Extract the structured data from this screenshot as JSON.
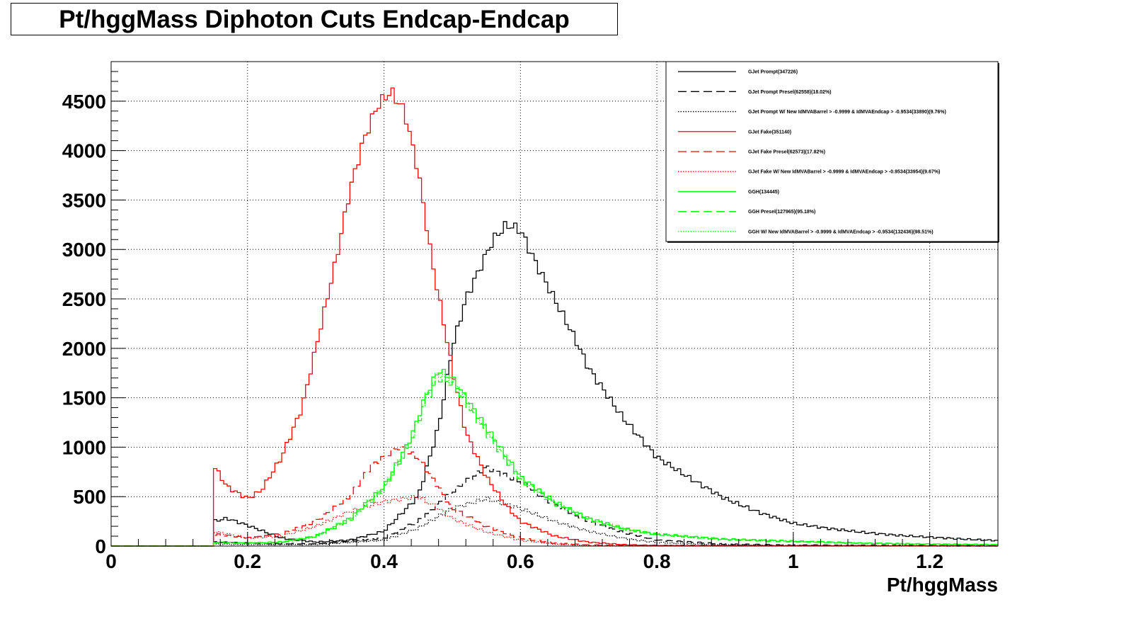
{
  "title": "Pt/hggMass Diphoton Cuts Endcap-Endcap",
  "colors": {
    "black": "#000000",
    "red": "#ff0000",
    "green": "#00ff00"
  },
  "chart_data": {
    "type": "line",
    "xlabel": "Pt/hggMass",
    "ylabel": "",
    "xlim": [
      0,
      1.3
    ],
    "ylim": [
      0,
      4900
    ],
    "grid": true,
    "legend_position": "top-right",
    "x_ticks": [
      0,
      0.2,
      0.4,
      0.6,
      0.8,
      1,
      1.2
    ],
    "x_tick_labels": [
      "0",
      "0.2",
      "0.4",
      "0.6",
      "0.8",
      "1",
      "1.2"
    ],
    "y_ticks": [
      0,
      500,
      1000,
      1500,
      2000,
      2500,
      3000,
      3500,
      4000,
      4500
    ],
    "y_tick_labels": [
      "0",
      "500",
      "1000",
      "1500",
      "2000",
      "2500",
      "3000",
      "3500",
      "4000",
      "4500"
    ],
    "series": [
      {
        "name": "GJet Prompt(347226)",
        "color": "#000000",
        "style": "solid",
        "points": [
          [
            0.15,
            0
          ],
          [
            0.15,
            250
          ],
          [
            0.17,
            280
          ],
          [
            0.2,
            210
          ],
          [
            0.25,
            80
          ],
          [
            0.3,
            40
          ],
          [
            0.35,
            60
          ],
          [
            0.4,
            150
          ],
          [
            0.45,
            500
          ],
          [
            0.48,
            1200
          ],
          [
            0.5,
            2000
          ],
          [
            0.52,
            2500
          ],
          [
            0.54,
            2800
          ],
          [
            0.56,
            3100
          ],
          [
            0.58,
            3250
          ],
          [
            0.6,
            3200
          ],
          [
            0.62,
            2900
          ],
          [
            0.65,
            2500
          ],
          [
            0.68,
            2100
          ],
          [
            0.7,
            1800
          ],
          [
            0.75,
            1300
          ],
          [
            0.8,
            900
          ],
          [
            0.85,
            680
          ],
          [
            0.9,
            480
          ],
          [
            0.95,
            340
          ],
          [
            1.0,
            230
          ],
          [
            1.05,
            180
          ],
          [
            1.1,
            140
          ],
          [
            1.15,
            110
          ],
          [
            1.2,
            90
          ],
          [
            1.25,
            70
          ],
          [
            1.3,
            55
          ]
        ]
      },
      {
        "name": "GJet Prompt Presel(62558)(18.02%)",
        "color": "#000000",
        "style": "dashed",
        "points": [
          [
            0.15,
            0
          ],
          [
            0.15,
            40
          ],
          [
            0.2,
            30
          ],
          [
            0.3,
            20
          ],
          [
            0.4,
            80
          ],
          [
            0.45,
            250
          ],
          [
            0.5,
            550
          ],
          [
            0.55,
            800
          ],
          [
            0.6,
            650
          ],
          [
            0.65,
            420
          ],
          [
            0.7,
            250
          ],
          [
            0.75,
            140
          ],
          [
            0.8,
            60
          ],
          [
            0.9,
            20
          ],
          [
            1.0,
            10
          ],
          [
            1.3,
            5
          ]
        ]
      },
      {
        "name": "GJet Prompt W/ New IdMVABarrel > -0.9999 & IdMVAEndcap > -0.9534(33890)(9.76%)",
        "color": "#000000",
        "style": "dotted",
        "points": [
          [
            0.15,
            0
          ],
          [
            0.15,
            20
          ],
          [
            0.2,
            15
          ],
          [
            0.3,
            15
          ],
          [
            0.4,
            60
          ],
          [
            0.45,
            180
          ],
          [
            0.5,
            380
          ],
          [
            0.55,
            480
          ],
          [
            0.6,
            380
          ],
          [
            0.65,
            250
          ],
          [
            0.7,
            150
          ],
          [
            0.75,
            80
          ],
          [
            0.8,
            35
          ],
          [
            0.9,
            12
          ],
          [
            1.0,
            5
          ],
          [
            1.3,
            3
          ]
        ]
      },
      {
        "name": "GJet Fake(351140)",
        "color": "#ff0000",
        "style": "solid",
        "points": [
          [
            0.15,
            0
          ],
          [
            0.15,
            820
          ],
          [
            0.17,
            600
          ],
          [
            0.2,
            480
          ],
          [
            0.22,
            560
          ],
          [
            0.25,
            900
          ],
          [
            0.28,
            1400
          ],
          [
            0.3,
            2000
          ],
          [
            0.33,
            2900
          ],
          [
            0.35,
            3600
          ],
          [
            0.37,
            4100
          ],
          [
            0.39,
            4450
          ],
          [
            0.41,
            4600
          ],
          [
            0.43,
            4400
          ],
          [
            0.45,
            3800
          ],
          [
            0.47,
            2900
          ],
          [
            0.5,
            1800
          ],
          [
            0.52,
            1150
          ],
          [
            0.55,
            700
          ],
          [
            0.58,
            400
          ],
          [
            0.6,
            250
          ],
          [
            0.65,
            100
          ],
          [
            0.7,
            40
          ],
          [
            0.75,
            15
          ],
          [
            0.8,
            5
          ],
          [
            1.3,
            0
          ]
        ]
      },
      {
        "name": "GJet Fake Presel(62573)(17.82%)",
        "color": "#ff0000",
        "style": "dashed",
        "points": [
          [
            0.15,
            0
          ],
          [
            0.15,
            120
          ],
          [
            0.2,
            80
          ],
          [
            0.25,
            120
          ],
          [
            0.3,
            250
          ],
          [
            0.35,
            500
          ],
          [
            0.38,
            800
          ],
          [
            0.42,
            1000
          ],
          [
            0.45,
            900
          ],
          [
            0.48,
            600
          ],
          [
            0.5,
            380
          ],
          [
            0.55,
            200
          ],
          [
            0.6,
            80
          ],
          [
            0.65,
            30
          ],
          [
            0.7,
            10
          ],
          [
            1.3,
            0
          ]
        ]
      },
      {
        "name": "GJet Fake W/ New IdMVABarrel > -0.9999 & IdMVAEndcap > -0.9534(33954)(9.67%)",
        "color": "#ff0000",
        "style": "dotted",
        "points": [
          [
            0.15,
            0
          ],
          [
            0.15,
            150
          ],
          [
            0.2,
            80
          ],
          [
            0.25,
            100
          ],
          [
            0.3,
            200
          ],
          [
            0.35,
            350
          ],
          [
            0.4,
            450
          ],
          [
            0.45,
            500
          ],
          [
            0.48,
            380
          ],
          [
            0.5,
            280
          ],
          [
            0.55,
            140
          ],
          [
            0.6,
            60
          ],
          [
            0.65,
            20
          ],
          [
            0.7,
            5
          ],
          [
            1.3,
            0
          ]
        ]
      },
      {
        "name": "GGH(134445)",
        "color": "#00ff00",
        "style": "solid",
        "points": [
          [
            0.15,
            0
          ],
          [
            0.15,
            40
          ],
          [
            0.2,
            30
          ],
          [
            0.25,
            40
          ],
          [
            0.3,
            100
          ],
          [
            0.35,
            280
          ],
          [
            0.4,
            600
          ],
          [
            0.44,
            1100
          ],
          [
            0.46,
            1500
          ],
          [
            0.48,
            1780
          ],
          [
            0.5,
            1700
          ],
          [
            0.52,
            1500
          ],
          [
            0.55,
            1200
          ],
          [
            0.58,
            900
          ],
          [
            0.6,
            700
          ],
          [
            0.65,
            450
          ],
          [
            0.7,
            280
          ],
          [
            0.75,
            180
          ],
          [
            0.8,
            120
          ],
          [
            0.9,
            70
          ],
          [
            1.0,
            50
          ],
          [
            1.1,
            30
          ],
          [
            1.2,
            20
          ],
          [
            1.3,
            15
          ]
        ]
      },
      {
        "name": "GGH Presel(127965)(95.18%)",
        "color": "#00ff00",
        "style": "dashed",
        "points": [
          [
            0.15,
            0
          ],
          [
            0.15,
            35
          ],
          [
            0.2,
            28
          ],
          [
            0.25,
            38
          ],
          [
            0.3,
            95
          ],
          [
            0.35,
            260
          ],
          [
            0.4,
            570
          ],
          [
            0.44,
            1050
          ],
          [
            0.46,
            1450
          ],
          [
            0.48,
            1700
          ],
          [
            0.5,
            1650
          ],
          [
            0.52,
            1450
          ],
          [
            0.55,
            1150
          ],
          [
            0.58,
            860
          ],
          [
            0.6,
            670
          ],
          [
            0.65,
            430
          ],
          [
            0.7,
            270
          ],
          [
            0.75,
            170
          ],
          [
            0.8,
            115
          ],
          [
            0.9,
            65
          ],
          [
            1.0,
            45
          ],
          [
            1.1,
            28
          ],
          [
            1.2,
            18
          ],
          [
            1.3,
            12
          ]
        ]
      },
      {
        "name": "GGH W/ New IdMVABarrel > -0.9999 & IdMVAEndcap > -0.9534(132436)(98.51%)",
        "color": "#00ff00",
        "style": "dotted",
        "points": [
          [
            0.15,
            0
          ],
          [
            0.15,
            38
          ],
          [
            0.2,
            29
          ],
          [
            0.25,
            39
          ],
          [
            0.3,
            98
          ],
          [
            0.35,
            270
          ],
          [
            0.4,
            590
          ],
          [
            0.44,
            1080
          ],
          [
            0.46,
            1480
          ],
          [
            0.48,
            1750
          ],
          [
            0.5,
            1680
          ],
          [
            0.52,
            1480
          ],
          [
            0.55,
            1180
          ],
          [
            0.58,
            880
          ],
          [
            0.6,
            690
          ],
          [
            0.65,
            440
          ],
          [
            0.7,
            275
          ],
          [
            0.75,
            175
          ],
          [
            0.8,
            118
          ],
          [
            0.9,
            68
          ],
          [
            1.0,
            48
          ],
          [
            1.1,
            29
          ],
          [
            1.2,
            19
          ],
          [
            1.3,
            14
          ]
        ]
      }
    ]
  }
}
